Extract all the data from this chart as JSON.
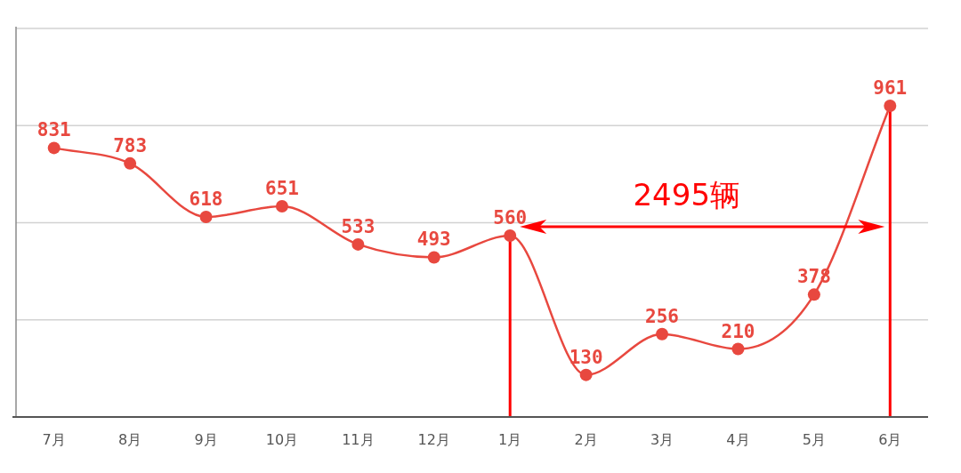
{
  "chart_data": {
    "type": "line",
    "categories": [
      "7月",
      "8月",
      "9月",
      "10月",
      "11月",
      "12月",
      "1月",
      "2月",
      "3月",
      "4月",
      "5月",
      "6月"
    ],
    "series": [
      {
        "color": "#e8483f",
        "values": [
          831,
          783,
          618,
          651,
          533,
          493,
          560,
          130,
          256,
          210,
          378,
          961
        ]
      }
    ],
    "ylim": [
      0,
      1200
    ],
    "yticks": [
      {
        "value": 0,
        "label": null
      },
      {
        "value": 300,
        "label": null
      },
      {
        "value": 600,
        "label": null
      },
      {
        "value": 900,
        "label": null
      },
      {
        "value": 1200,
        "label": null
      }
    ],
    "grid": "y",
    "tick_labels": "x",
    "data_labels": true,
    "marker": "circle",
    "line_style": "solid",
    "ref_lines": [
      {
        "axis": "x",
        "value": "1月",
        "color": "#ff0000"
      },
      {
        "axis": "x",
        "value": "6月",
        "color": "#ff0000"
      }
    ],
    "annotations": [
      "2495辆"
    ]
  }
}
